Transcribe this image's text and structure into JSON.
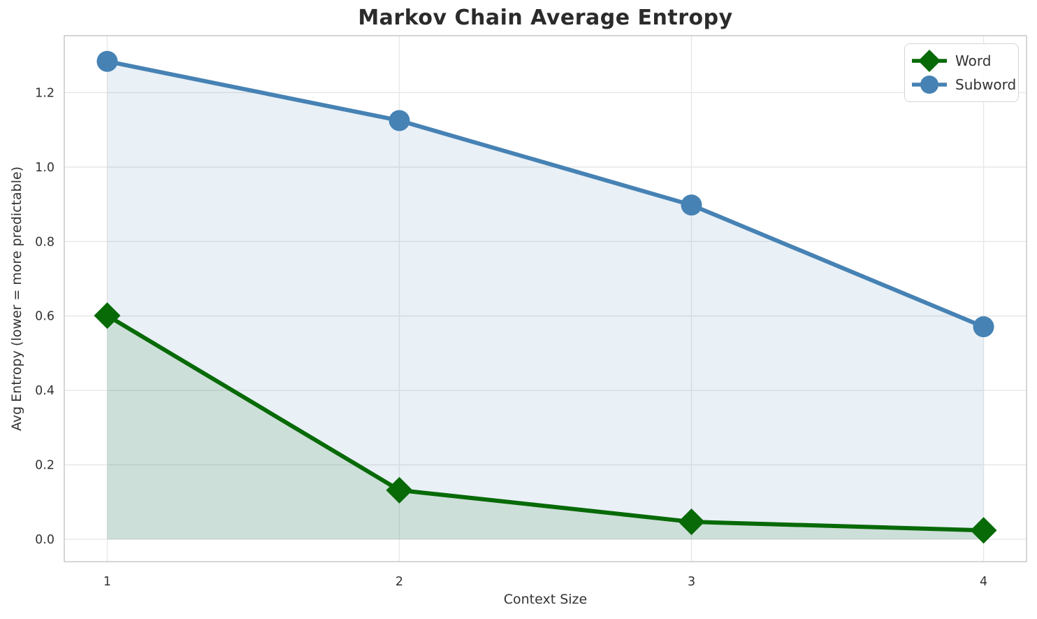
{
  "chart_data": {
    "type": "line",
    "title": "Markov Chain Average Entropy",
    "xlabel": "Context Size",
    "ylabel": "Avg Entropy (lower = more predictable)",
    "x": [
      1,
      2,
      3,
      4
    ],
    "series": [
      {
        "name": "Word",
        "values": [
          0.601,
          0.132,
          0.047,
          0.024
        ],
        "color": "#076a07",
        "marker": "diamond",
        "area_fill": true
      },
      {
        "name": "Subword",
        "values": [
          1.284,
          1.125,
          0.898,
          0.571
        ],
        "color": "#4682b4",
        "marker": "circle",
        "area_fill": true
      }
    ],
    "xticks": [
      1,
      2,
      3,
      4
    ],
    "xtick_labels": [
      "1",
      "2",
      "3",
      "4"
    ],
    "yticks": [
      0.0,
      0.2,
      0.4,
      0.6,
      0.8,
      1.0,
      1.2
    ],
    "ytick_labels": [
      "0.0",
      "0.2",
      "0.4",
      "0.6",
      "0.8",
      "1.0",
      "1.2"
    ],
    "xlim": [
      0.853,
      4.147
    ],
    "ylim": [
      -0.06,
      1.353
    ],
    "grid": true,
    "area_baseline": 0.0,
    "fill_alpha": 0.12,
    "legend_position": "upper right",
    "colors": {
      "grid": "#e7e7e7",
      "spine": "#cbcbcb",
      "title_text": "#2b2b2b",
      "tick_text": "#333333"
    }
  }
}
